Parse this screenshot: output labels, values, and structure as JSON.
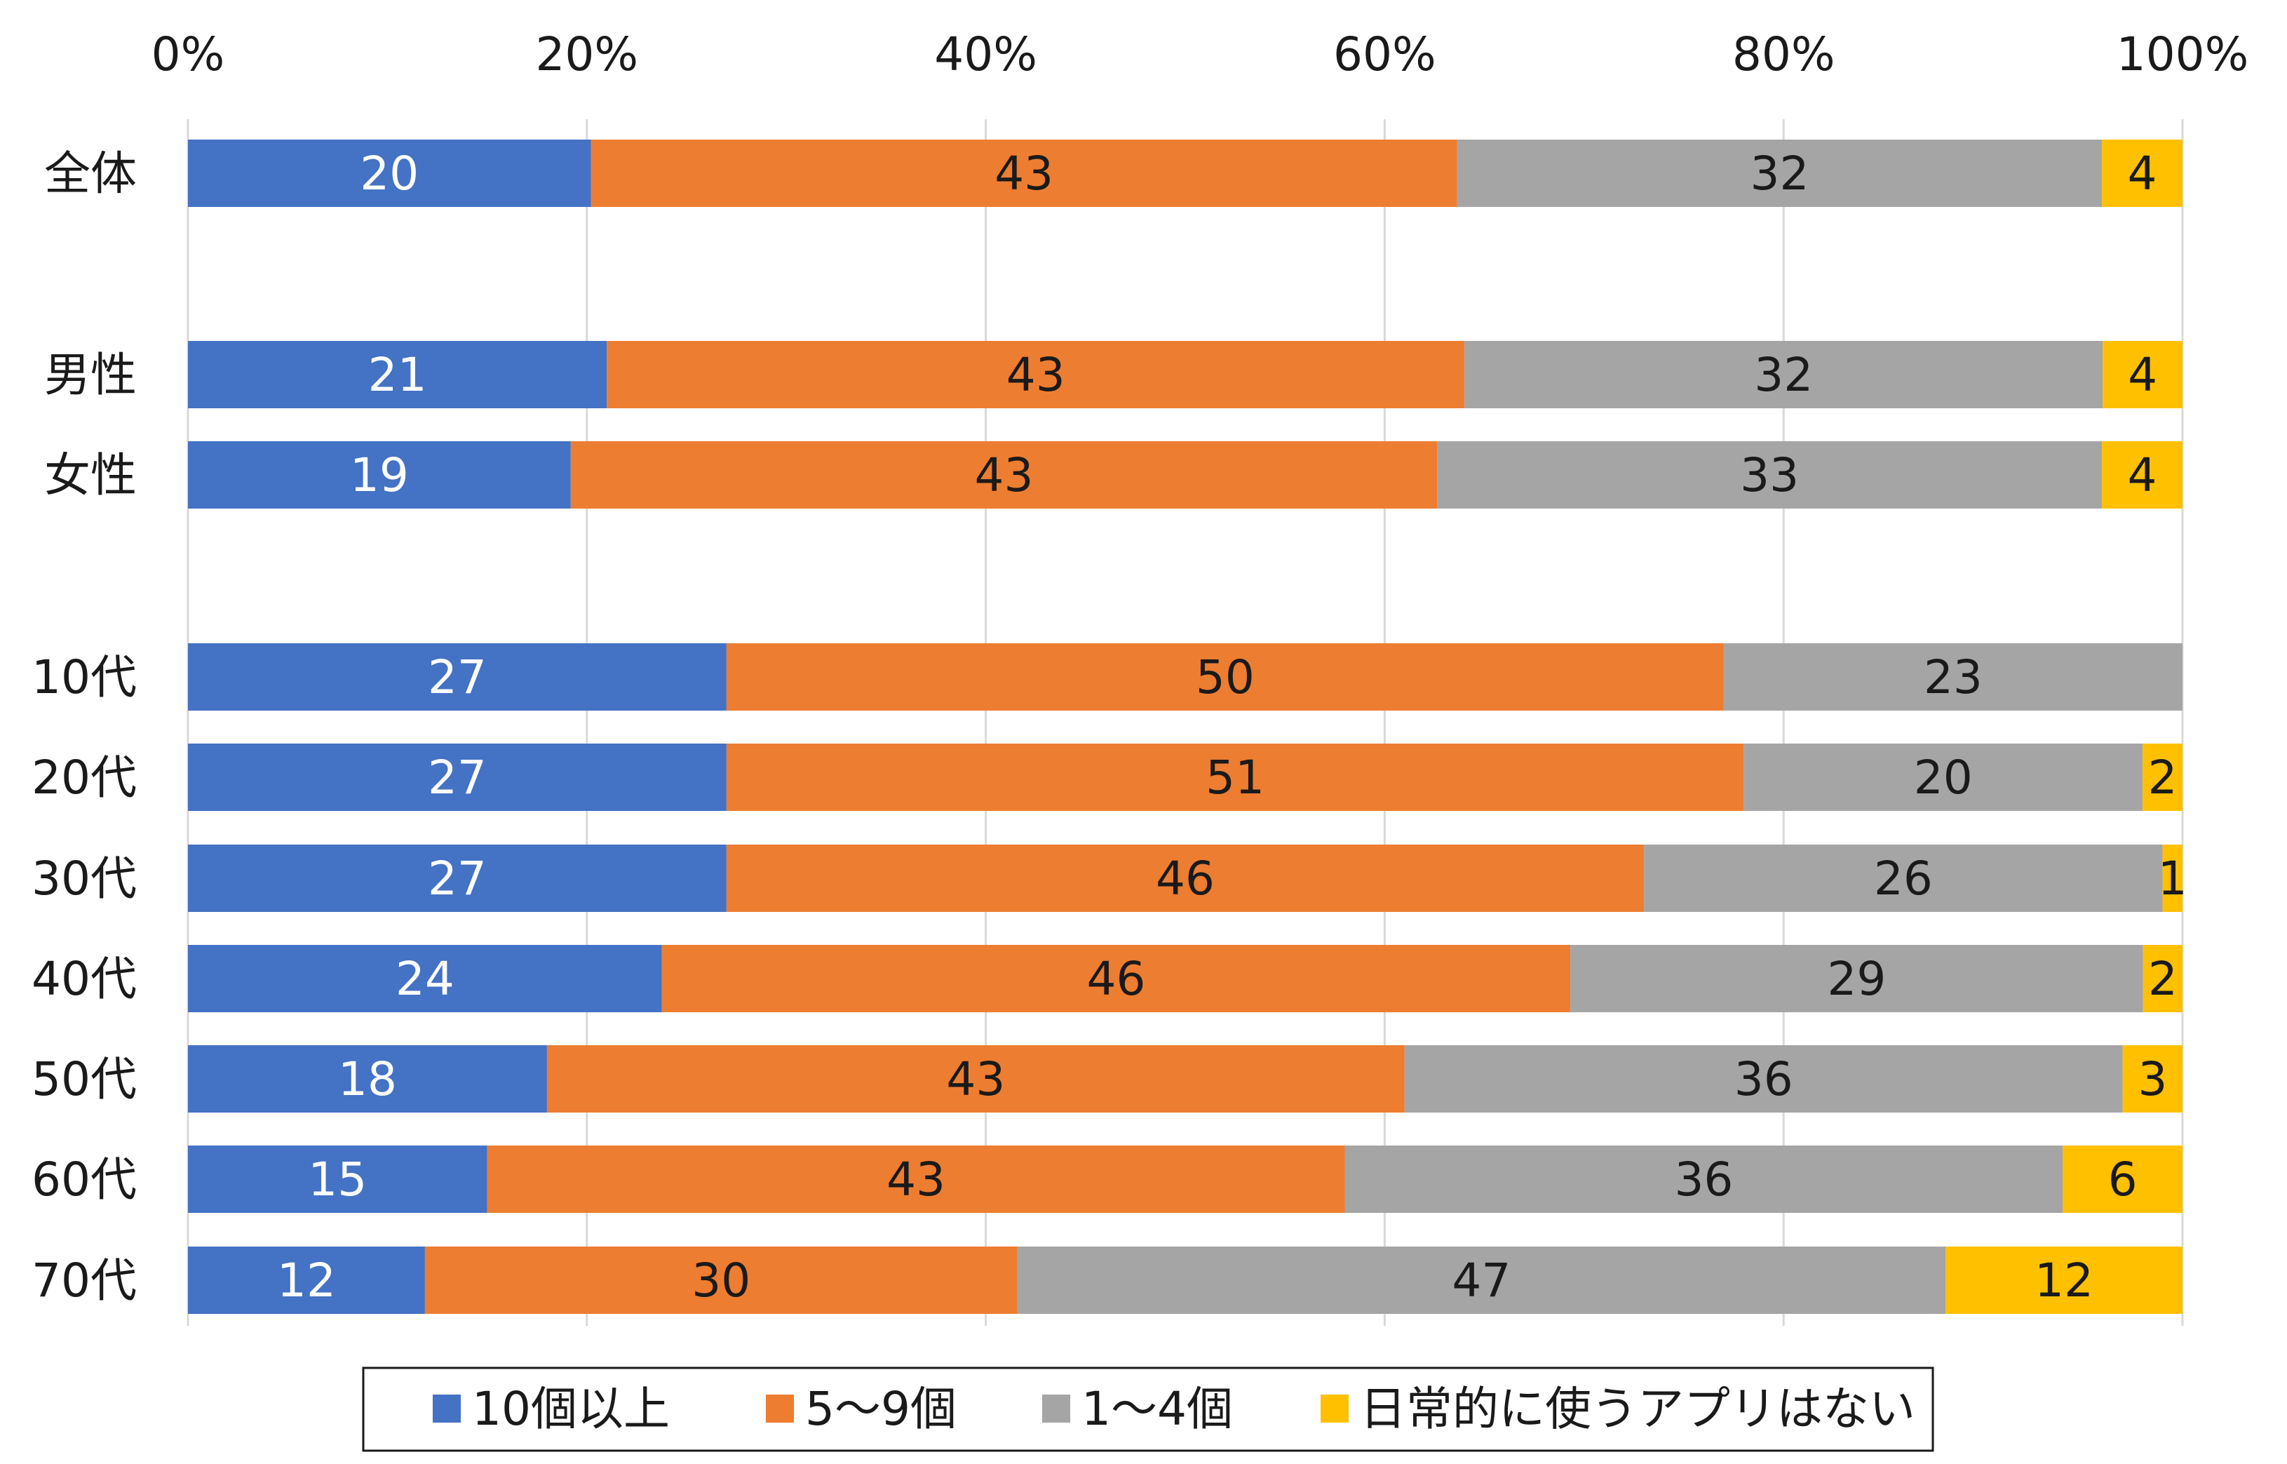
{
  "chart_data": {
    "type": "bar",
    "orientation": "horizontal",
    "stacked": "percent",
    "categories": [
      "全体",
      "男性",
      "女性",
      "10代",
      "20代",
      "30代",
      "40代",
      "50代",
      "60代",
      "70代"
    ],
    "series": [
      {
        "name": "10個以上",
        "color": "#4472C4",
        "label_color": "#ffffff",
        "values": [
          20,
          21,
          19,
          27,
          27,
          27,
          24,
          18,
          15,
          12
        ]
      },
      {
        "name": "5〜9個",
        "color": "#ED7D31",
        "label_color": "#1a1a1a",
        "values": [
          43,
          43,
          43,
          50,
          51,
          46,
          46,
          43,
          43,
          30
        ]
      },
      {
        "name": "1〜4個",
        "color": "#A5A5A5",
        "label_color": "#1a1a1a",
        "values": [
          32,
          32,
          33,
          23,
          20,
          26,
          29,
          36,
          36,
          47
        ]
      },
      {
        "name": "日常的に使うアプリはない",
        "color": "#FFC000",
        "label_color": "#1a1a1a",
        "values": [
          4,
          4,
          4,
          null,
          2,
          1,
          2,
          3,
          6,
          12
        ]
      }
    ],
    "x_ticks": [
      "0%",
      "20%",
      "40%",
      "60%",
      "80%",
      "100%"
    ],
    "xlim": [
      0,
      100
    ],
    "x_axis_position": "top",
    "grid": true,
    "legend_position": "bottom",
    "title": "",
    "xlabel": "",
    "ylabel": ""
  }
}
